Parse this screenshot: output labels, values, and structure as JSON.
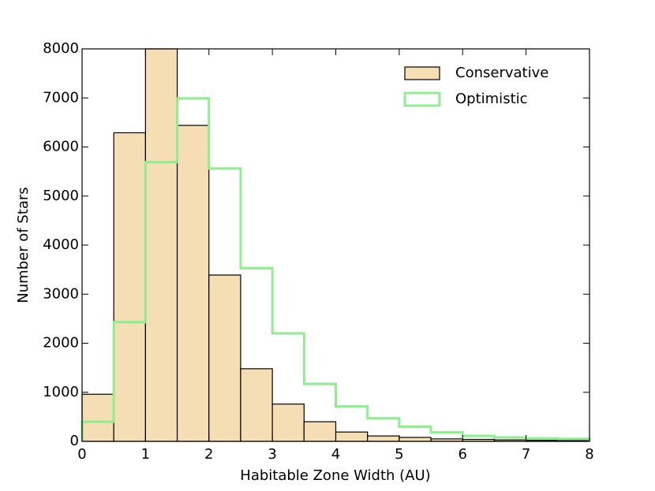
{
  "chart_data": {
    "type": "histogram",
    "xlabel": "Habitable Zone Width (AU)",
    "ylabel": "Number of Stars",
    "bins": [
      0,
      0.5,
      1,
      1.5,
      2,
      2.5,
      3,
      3.5,
      4,
      4.5,
      5,
      5.5,
      6,
      6.5,
      7,
      7.5,
      8
    ],
    "series": [
      {
        "name": "Conservative",
        "color": "#f5deb3",
        "edgecolor": "#000000",
        "style": "bar",
        "values": [
          960,
          6290,
          8000,
          6440,
          3390,
          1480,
          760,
          400,
          190,
          110,
          80,
          50,
          40,
          30,
          20,
          15
        ]
      },
      {
        "name": "Optimistic",
        "color": "#90ee90",
        "style": "step",
        "values": [
          400,
          2430,
          5690,
          6990,
          5560,
          3530,
          2200,
          1170,
          710,
          470,
          300,
          180,
          110,
          80,
          60,
          50
        ]
      }
    ],
    "xlim": [
      0,
      8
    ],
    "xticks": [
      0,
      1,
      2,
      3,
      4,
      5,
      6,
      7,
      8
    ],
    "ylim": [
      0,
      8000
    ],
    "yticks": [
      0,
      1000,
      2000,
      3000,
      4000,
      5000,
      6000,
      7000,
      8000
    ],
    "legend": "upper right"
  }
}
